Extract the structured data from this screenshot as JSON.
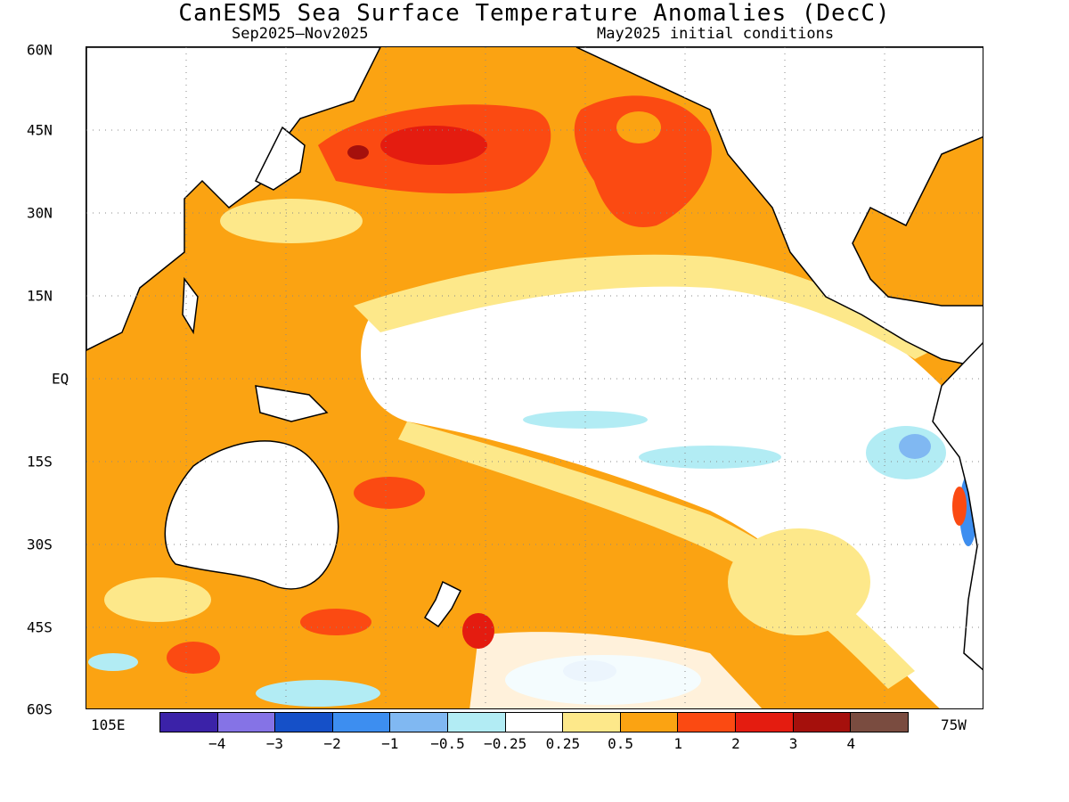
{
  "title": "CanESM5 Sea Surface Temperature Anomalies (DecC)",
  "subtitle_left": "Sep2025—Nov2025",
  "subtitle_right": "May2025 initial conditions",
  "lat_labels": [
    "60N",
    "45N",
    "30N",
    "15N",
    "EQ",
    "15S",
    "30S",
    "45S",
    "60S"
  ],
  "lon_labels": {
    "west": "105E",
    "east": "75W"
  },
  "colorbar": {
    "colors": [
      "#3b22a8",
      "#8573e6",
      "#1550c8",
      "#3d8ef0",
      "#80b8f2",
      "#b2ecf4",
      "#ffffff",
      "#fde88a",
      "#fba312",
      "#fb4a12",
      "#e41c10",
      "#a5100c",
      "#7a4c40"
    ],
    "ticks": [
      "−4",
      "−3",
      "−2",
      "−1",
      "−0.5",
      "−0.25",
      "0.25",
      "0.5",
      "1",
      "2",
      "3",
      "4"
    ]
  }
}
